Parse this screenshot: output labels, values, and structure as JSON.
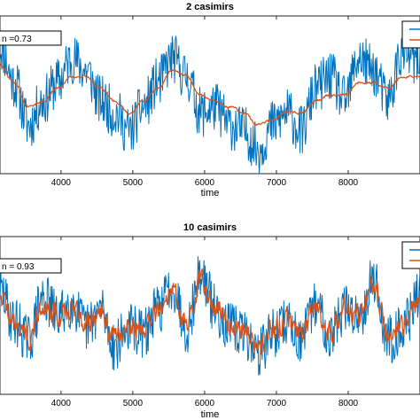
{
  "chart_data": [
    {
      "type": "line",
      "title": "2 casimirs",
      "xlabel": "time",
      "xlim": [
        3150,
        9000
      ],
      "xticks": [
        4000,
        5000,
        6000,
        7000,
        8000
      ],
      "xtick_labels": [
        "4000",
        "5000",
        "6000",
        "7000",
        "8000"
      ],
      "annotation": "n =0.73",
      "legend_position": "top-right",
      "grid": false,
      "series": [
        {
          "color": "#0072BD",
          "kind": "noisy_observed",
          "x": [
            3150,
            3350,
            3550,
            3750,
            3950,
            4150,
            4350,
            4550,
            4750,
            4950,
            5150,
            5350,
            5550,
            5750,
            5950,
            6150,
            6350,
            6550,
            6750,
            6950,
            7150,
            7350,
            7550,
            7750,
            7950,
            8150,
            8350,
            8550,
            8750,
            9000
          ],
          "y": [
            0.8,
            0.2,
            -0.5,
            -0.1,
            0.2,
            0.6,
            0.4,
            -0.1,
            -0.3,
            -0.6,
            -0.2,
            0.2,
            0.6,
            0.3,
            -0.3,
            -0.2,
            -0.5,
            -0.6,
            -0.9,
            -0.5,
            -0.3,
            -0.6,
            0.1,
            0.3,
            -0.1,
            0.6,
            0.4,
            -0.1,
            0.7,
            0.5
          ]
        },
        {
          "color": "#D95319",
          "kind": "smooth_fit",
          "x": [
            3150,
            3350,
            3550,
            3750,
            3950,
            4150,
            4350,
            4550,
            4750,
            4950,
            5150,
            5350,
            5550,
            5750,
            5950,
            6150,
            6350,
            6550,
            6750,
            6950,
            7150,
            7350,
            7550,
            7750,
            7950,
            8150,
            8350,
            8550,
            8750,
            9000
          ],
          "y": [
            0.5,
            0.2,
            -0.2,
            -0.1,
            0.1,
            0.3,
            0.3,
            0.1,
            -0.1,
            -0.3,
            -0.1,
            0.1,
            0.4,
            0.3,
            0.0,
            -0.1,
            -0.2,
            -0.3,
            -0.5,
            -0.4,
            -0.3,
            -0.3,
            -0.1,
            0.0,
            0.0,
            0.2,
            0.2,
            0.1,
            0.3,
            0.3
          ]
        }
      ]
    },
    {
      "type": "line",
      "title": "10 casimirs",
      "xlabel": "time",
      "xlim": [
        3150,
        9000
      ],
      "xticks": [
        4000,
        5000,
        6000,
        7000,
        8000
      ],
      "xtick_labels": [
        "4000",
        "5000",
        "6000",
        "7000",
        "8000"
      ],
      "annotation": "n = 0.93",
      "legend_position": "top-right",
      "grid": false,
      "series": [
        {
          "color": "#0072BD",
          "kind": "noisy_observed",
          "x": [
            3150,
            3350,
            3550,
            3750,
            3950,
            4150,
            4350,
            4550,
            4750,
            4950,
            5150,
            5350,
            5550,
            5750,
            5950,
            6150,
            6350,
            6550,
            6750,
            6950,
            7150,
            7350,
            7550,
            7750,
            7950,
            8150,
            8350,
            8550,
            8750,
            9000
          ],
          "y": [
            0.4,
            -0.1,
            -0.4,
            0.3,
            0.0,
            0.2,
            -0.2,
            0.1,
            -0.5,
            -0.2,
            -0.3,
            0.1,
            0.5,
            -0.2,
            0.7,
            0.1,
            -0.2,
            -0.3,
            -0.6,
            -0.3,
            -0.1,
            -0.4,
            0.2,
            -0.3,
            0.1,
            0.0,
            0.6,
            -0.4,
            -0.2,
            0.3
          ]
        },
        {
          "color": "#D95319",
          "kind": "tracking_fit",
          "x": [
            3150,
            3350,
            3550,
            3750,
            3950,
            4150,
            4350,
            4550,
            4750,
            4950,
            5150,
            5350,
            5550,
            5750,
            5950,
            6150,
            6350,
            6550,
            6750,
            6950,
            7150,
            7350,
            7550,
            7750,
            7950,
            8150,
            8350,
            8550,
            8750,
            9000
          ],
          "y": [
            0.35,
            -0.1,
            -0.35,
            0.25,
            0.0,
            0.15,
            -0.15,
            0.05,
            -0.4,
            -0.2,
            -0.25,
            0.05,
            0.4,
            -0.15,
            0.55,
            0.1,
            -0.15,
            -0.25,
            -0.5,
            -0.25,
            -0.1,
            -0.35,
            0.15,
            -0.25,
            0.1,
            0.0,
            0.5,
            -0.3,
            -0.15,
            0.25
          ]
        }
      ]
    }
  ]
}
